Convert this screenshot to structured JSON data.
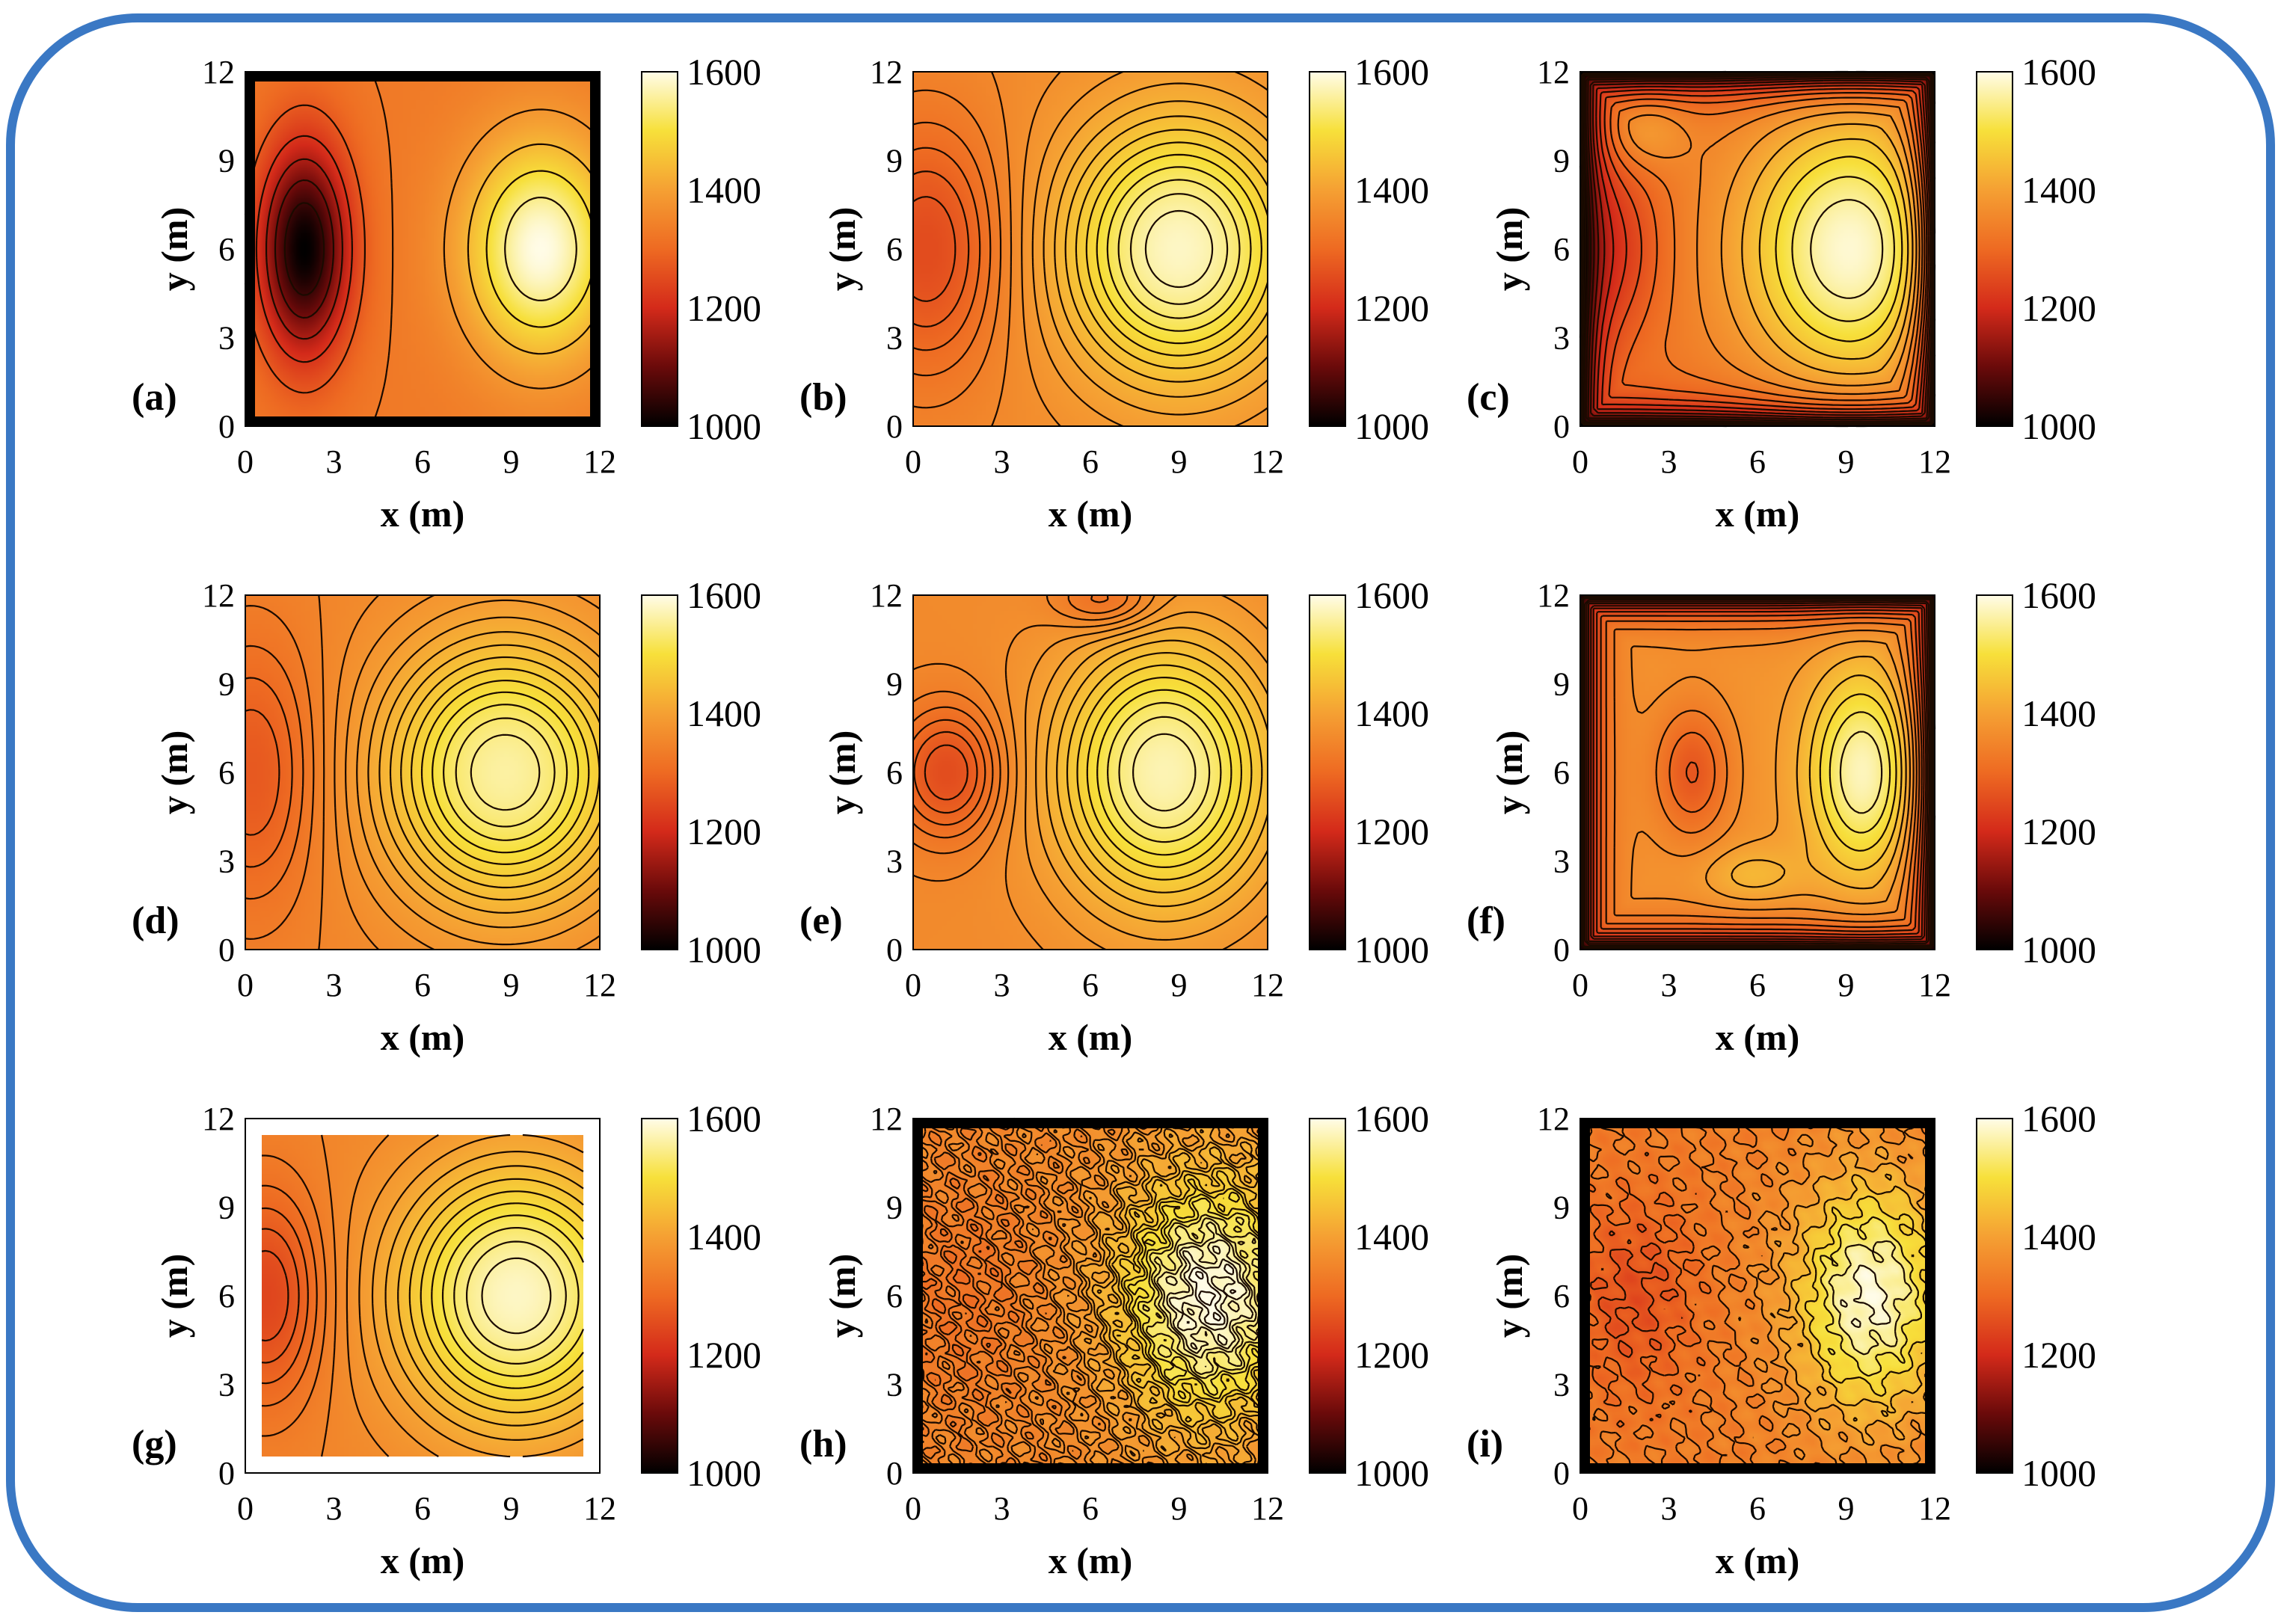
{
  "figure": {
    "border_color": "#3a78c4",
    "colormap": {
      "name": "hot",
      "stops": [
        "#000000",
        "#6a0a0a",
        "#d42a1a",
        "#ee6a22",
        "#f5a033",
        "#f7e03a",
        "#fffce8"
      ]
    }
  },
  "chart_data": [
    {
      "type": "heatmap",
      "panel": "(a)",
      "xlabel": "x (m)",
      "ylabel": "y (m)",
      "xlim": [
        0,
        12
      ],
      "ylim": [
        0,
        12
      ],
      "xticks": [
        "0",
        "3",
        "6",
        "9",
        "12"
      ],
      "yticks": [
        "0",
        "3",
        "6",
        "9",
        "12"
      ],
      "clim": [
        1000,
        1600
      ],
      "cbar_ticks": [
        "1000",
        "1200",
        "1400",
        "1600"
      ],
      "base": 1330,
      "peaks": [
        [
          2,
          6,
          -330,
          1.1,
          2.6
        ],
        [
          10,
          6,
          270,
          1.8,
          2.6
        ]
      ],
      "contour_levels": 10,
      "thick_border": true
    },
    {
      "type": "heatmap",
      "panel": "(b)",
      "xlabel": "x (m)",
      "ylabel": "y (m)",
      "xlim": [
        0,
        12
      ],
      "ylim": [
        0,
        12
      ],
      "xticks": [
        "0",
        "3",
        "6",
        "9",
        "12"
      ],
      "yticks": [
        "0",
        "3",
        "6",
        "9",
        "12"
      ],
      "clim": [
        1000,
        1600
      ],
      "cbar_ticks": [
        "1000",
        "1200",
        "1400",
        "1600"
      ],
      "base": 1360,
      "peaks": [
        [
          9,
          6,
          220,
          2.8,
          3.2
        ],
        [
          0.5,
          6,
          -110,
          1.8,
          3.0
        ]
      ],
      "contour_levels": 18
    },
    {
      "type": "heatmap",
      "panel": "(c)",
      "xlabel": "x (m)",
      "ylabel": "y (m)",
      "xlim": [
        0,
        12
      ],
      "ylim": [
        0,
        12
      ],
      "xticks": [
        "0",
        "3",
        "6",
        "9",
        "12"
      ],
      "yticks": [
        "0",
        "3",
        "6",
        "9",
        "12"
      ],
      "clim": [
        1000,
        1600
      ],
      "cbar_ticks": [
        "1000",
        "1200",
        "1400",
        "1600"
      ],
      "base": 1330,
      "peaks": [
        [
          9.2,
          6,
          260,
          2.6,
          3.2
        ],
        [
          2.2,
          10,
          70,
          1.0,
          0.9
        ],
        [
          1.2,
          6,
          -90,
          1.2,
          2.2
        ]
      ],
      "contour_levels": 20,
      "edge_dark": true
    },
    {
      "type": "heatmap",
      "panel": "(d)",
      "xlabel": "x (m)",
      "ylabel": "y (m)",
      "xlim": [
        0,
        12
      ],
      "ylim": [
        0,
        12
      ],
      "xticks": [
        "0",
        "3",
        "6",
        "9",
        "12"
      ],
      "yticks": [
        "0",
        "3",
        "6",
        "9",
        "12"
      ],
      "clim": [
        1000,
        1600
      ],
      "cbar_ticks": [
        "1000",
        "1200",
        "1400",
        "1600"
      ],
      "base": 1350,
      "peaks": [
        [
          8.8,
          6,
          210,
          3.0,
          3.3
        ],
        [
          0.3,
          6,
          -80,
          1.6,
          3.2
        ]
      ],
      "contour_levels": 18
    },
    {
      "type": "heatmap",
      "panel": "(e)",
      "xlabel": "x (m)",
      "ylabel": "y (m)",
      "xlim": [
        0,
        12
      ],
      "ylim": [
        0,
        12
      ],
      "xticks": [
        "0",
        "3",
        "6",
        "9",
        "12"
      ],
      "yticks": [
        "0",
        "3",
        "6",
        "9",
        "12"
      ],
      "clim": [
        1000,
        1600
      ],
      "cbar_ticks": [
        "1000",
        "1200",
        "1400",
        "1600"
      ],
      "base": 1360,
      "peaks": [
        [
          8.5,
          6,
          210,
          2.6,
          3.2
        ],
        [
          1.2,
          6,
          -110,
          1.3,
          1.6
        ],
        [
          6.5,
          11.8,
          -70,
          1.2,
          0.7
        ]
      ],
      "contour_levels": 18
    },
    {
      "type": "heatmap",
      "panel": "(f)",
      "xlabel": "x (m)",
      "ylabel": "y (m)",
      "xlim": [
        0,
        12
      ],
      "ylim": [
        0,
        12
      ],
      "xticks": [
        "0",
        "3",
        "6",
        "9",
        "12"
      ],
      "yticks": [
        "0",
        "3",
        "6",
        "9",
        "12"
      ],
      "clim": [
        1000,
        1600
      ],
      "cbar_ticks": [
        "1000",
        "1200",
        "1400",
        "1600"
      ],
      "base": 1380,
      "peaks": [
        [
          9.6,
          6,
          200,
          1.3,
          2.4
        ],
        [
          3.8,
          6,
          -110,
          0.9,
          1.6
        ],
        [
          5.8,
          2.5,
          60,
          1.2,
          0.7
        ]
      ],
      "contour_levels": 18,
      "edge_dark": true
    },
    {
      "type": "heatmap",
      "panel": "(g)",
      "xlabel": "x (m)",
      "ylabel": "y (m)",
      "xlim": [
        0,
        12
      ],
      "ylim": [
        0,
        12
      ],
      "xticks": [
        "0",
        "3",
        "6",
        "9",
        "12"
      ],
      "yticks": [
        "0",
        "3",
        "6",
        "9",
        "12"
      ],
      "clim": [
        1000,
        1600
      ],
      "cbar_ticks": [
        "1000",
        "1200",
        "1400",
        "1600"
      ],
      "base": 1350,
      "peaks": [
        [
          9.5,
          6,
          230,
          3.2,
          3.5
        ],
        [
          0.2,
          6,
          -110,
          1.5,
          2.8
        ]
      ],
      "contour_levels": 18,
      "inset": true
    },
    {
      "type": "heatmap",
      "panel": "(h)",
      "xlabel": "x (m)",
      "ylabel": "y (m)",
      "xlim": [
        0,
        12
      ],
      "ylim": [
        0,
        12
      ],
      "xticks": [
        "0",
        "3",
        "6",
        "9",
        "12"
      ],
      "yticks": [
        "0",
        "3",
        "6",
        "9",
        "12"
      ],
      "clim": [
        1000,
        1600
      ],
      "cbar_ticks": [
        "1000",
        "1200",
        "1400",
        "1600"
      ],
      "base": 1360,
      "peaks": [
        [
          10,
          6,
          240,
          2.2,
          3.0
        ],
        [
          1.5,
          6,
          -40,
          1.8,
          3.0
        ]
      ],
      "contour_levels": 22,
      "noisy": true,
      "thick_border": true
    },
    {
      "type": "heatmap",
      "panel": "(i)",
      "xlabel": "x (m)",
      "ylabel": "y (m)",
      "xlim": [
        0,
        12
      ],
      "ylim": [
        0,
        12
      ],
      "xticks": [
        "0",
        "3",
        "6",
        "9",
        "12"
      ],
      "yticks": [
        "0",
        "3",
        "6",
        "9",
        "12"
      ],
      "clim": [
        1000,
        1600
      ],
      "cbar_ticks": [
        "1000",
        "1200",
        "1400",
        "1600"
      ],
      "base": 1340,
      "peaks": [
        [
          9.8,
          6,
          250,
          1.8,
          2.8
        ],
        [
          1.8,
          6,
          -80,
          1.5,
          2.4
        ]
      ],
      "contour_levels": 10,
      "noisy": true,
      "thick_border": true
    }
  ]
}
